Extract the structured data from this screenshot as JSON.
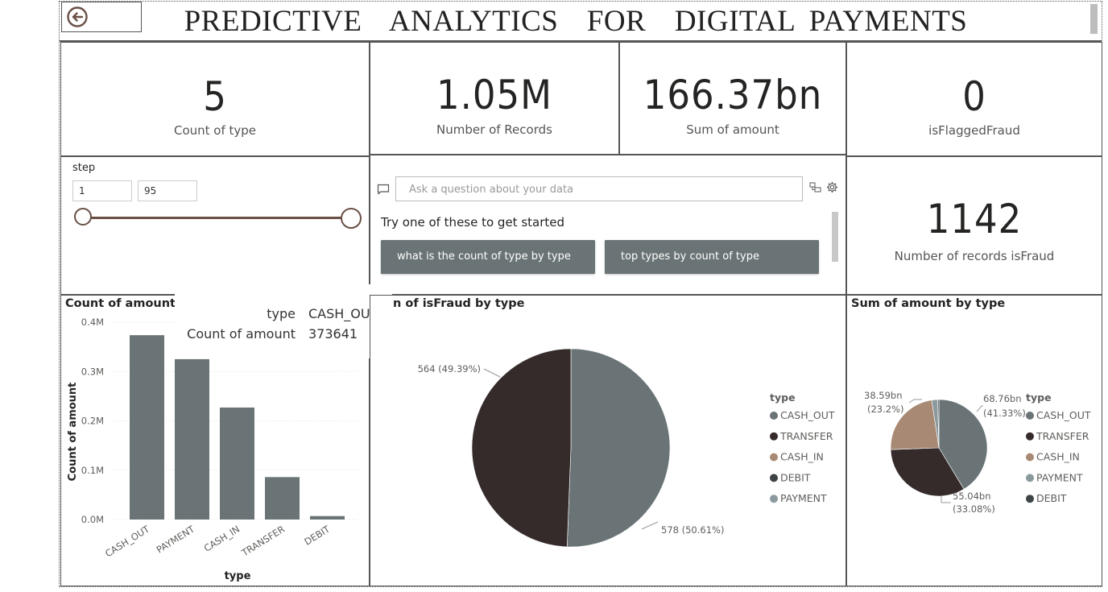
{
  "header": {
    "title": "PREDICTIVE  ANALYTICS  FOR  DIGITAL PAYMENTS",
    "back_icon": "back-arrow-icon"
  },
  "kpis": {
    "count_of_type": {
      "value": "5",
      "label": "Count of type"
    },
    "number_of_records": {
      "value": "1.05M",
      "label": "Number of Records"
    },
    "sum_of_amount": {
      "value": "166.37bn",
      "label": "Sum of amount"
    },
    "is_flagged_fraud": {
      "value": "0",
      "label": "isFlaggedFraud"
    },
    "records_is_fraud": {
      "value": "1142",
      "label": "Number of records isFraud"
    }
  },
  "step_slicer": {
    "label": "step",
    "min": "1",
    "max": "95"
  },
  "qa": {
    "placeholder": "Ask a question about your data",
    "prompt": "Try one of these to get started",
    "suggestions": [
      "what is the count of type by type",
      "top types by count of type"
    ]
  },
  "tooltip": {
    "type_label": "type",
    "type_value": "CASH_OUT",
    "amount_label": "Count of amount",
    "amount_value": "373641"
  },
  "colors": {
    "CASH_OUT": "#6a7476",
    "TRANSFER": "#352b2b",
    "CASH_IN": "#a88a74",
    "DEBIT": "#3e4446",
    "PAYMENT": "#8a9a9e"
  },
  "chart_data": [
    {
      "type": "bar",
      "title": "Count of amount b",
      "xlabel": "type",
      "ylabel": "Count of amount",
      "categories": [
        "CASH_OUT",
        "PAYMENT",
        "CASH_IN",
        "TRANSFER",
        "DEBIT"
      ],
      "values": [
        373641,
        325000,
        227000,
        86000,
        7000
      ],
      "yticks": [
        "0.0M",
        "0.1M",
        "0.2M",
        "0.3M",
        "0.4M"
      ],
      "ylim": [
        0,
        400000
      ]
    },
    {
      "type": "pie",
      "title": "n of isFraud by type",
      "legend_title": "type",
      "legend": [
        "CASH_OUT",
        "TRANSFER",
        "CASH_IN",
        "DEBIT",
        "PAYMENT"
      ],
      "slices": [
        {
          "name": "CASH_OUT",
          "value": 578,
          "label": "578 (50.61%)"
        },
        {
          "name": "TRANSFER",
          "value": 564,
          "label": "564 (49.39%)"
        }
      ]
    },
    {
      "type": "pie",
      "title": "Sum of amount by type",
      "legend_title": "type",
      "legend": [
        "CASH_OUT",
        "TRANSFER",
        "CASH_IN",
        "PAYMENT",
        "DEBIT"
      ],
      "slices": [
        {
          "name": "CASH_OUT",
          "value": 41.33,
          "label_a": "68.76bn",
          "label_b": "(41.33%)"
        },
        {
          "name": "TRANSFER",
          "value": 33.08,
          "label_a": "55.04bn",
          "label_b": "(33.08%)"
        },
        {
          "name": "CASH_IN",
          "value": 23.2,
          "label_a": "38.59bn",
          "label_b": "(23.2%)"
        },
        {
          "name": "PAYMENT",
          "value": 2.0
        },
        {
          "name": "DEBIT",
          "value": 0.39
        }
      ]
    }
  ]
}
